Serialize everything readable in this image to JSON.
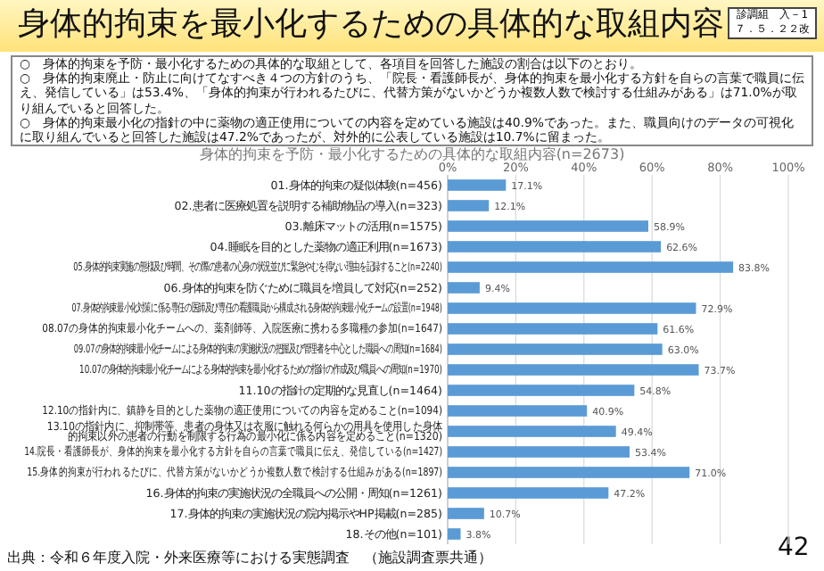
{
  "chart_data": {
    "type": "bar",
    "orientation": "horizontal",
    "title": "身体的拘束を最小化するための具体的な取組内容",
    "subtitle": "身体的拘束を予防・最小化するための具体的な取組内容(n=2673)",
    "annotations": [
      "診調組　入－1\n７．５．２２改",
      "○　身体的拘束を予防・最小化するための具体的な取組として、各項目を回答した施設の割合は以下のとおり。",
      "○　身体的拘束廃止・防止に向けてなすべき４つの方針のうち、「院長・看護師長が、身体的拘束を最小化する方針を自らの言葉で職員に伝え、発信している」は53.4%、「身体的拘束が行われるたびに、代替方策がないかどうか複数人数で検討する仕組みがある」は71.0%が取り組んでいると回答した。",
      "○　身体的拘束最小化の指針の中に薬物の適正使用についての内容を定めている施設は40.9%であった。また、職員向けのデータの可視化に取り組んでいると回答した施設は47.2%であったが、対外的に公表している施設は10.7%に留まった。",
      "出典：令和６年度入院・外来医療等における実態調査　（施設調査票共通）",
      "42"
    ],
    "categories": [
      "01.身体的拘束の疑似体験(n=456)",
      "02.患者に医療処置を説明する補助物品の導入(n=323)",
      "03.離床マットの活用(n=1575)",
      "04.睡眠を目的とした薬物の適正利用(n=1673)",
      "05.身体的拘束実施の態様及び時間、その際の患者の心身の状況並びに緊急やむを得ない理由を記録すること(n=2240)",
      "06.身体的拘束を防ぐために職員を増員して対応(n=252)",
      "07.身体的拘束最小化対策に係る専任の医師及び専任の看護職員から構成される身体的拘束最小化チームの設置(n=1948)",
      "08.07の身体的拘束最小化チームへの、薬剤師等、入院医療に携わる多職種の参加(n=1647)",
      "09.07の身体的拘束最小化チームによる身体的拘束の実施状況の把握及び管理者を中心とした職員への周知(n=1684)",
      "10.07の身体的拘束最小化チームによる身体的拘束を最小化するための指針の作成及び職員への周知(n=1970)",
      "11.10の指針の定期的な見直し(n=1464)",
      "12.10の指針内に、鎮静を目的とした薬物の適正使用についての内容を定めること(n=1094)",
      "13.10の指針内に、抑制帯等、患者の身体又は衣服に触れる何らかの用具を使用した身体的拘束以外の患者の行動を制限する行為の最小化に係る内容を定めること(n=1320)",
      "14.院長・看護師長が、身体的拘束を最小化する方針を自らの言葉で職員に伝え、発信している(n=1427)",
      "15.身体的拘束が行われるたびに、代替方策がないかどうか複数人数で検討する仕組みがある(n=1897)",
      "16.身体的拘束の実施状況の全職員への公開・周知(n=1261)",
      "17.身体的拘束の実施状況の院内掲示やHP掲載(n=285)",
      "18.その他(n=101)"
    ],
    "values": [
      17.1,
      12.1,
      58.9,
      62.6,
      83.8,
      9.4,
      72.9,
      61.6,
      63.0,
      73.7,
      54.8,
      40.9,
      49.4,
      53.4,
      71.0,
      47.2,
      10.7,
      3.8
    ],
    "value_labels": [
      "17.1%",
      "12.1%",
      "58.9%",
      "62.6%",
      "83.8%",
      "9.4%",
      "72.9%",
      "61.6%",
      "63.0%",
      "73.7%",
      "54.8%",
      "40.9%",
      "49.4%",
      "53.4%",
      "71.0%",
      "47.2%",
      "10.7%",
      "3.8%"
    ],
    "color": "#5b9bd5",
    "xlim": [
      0,
      100
    ],
    "xticks": [
      {
        "value": 0,
        "label": "0%"
      },
      {
        "value": 20,
        "label": "20%"
      },
      {
        "value": 40,
        "label": "40%"
      },
      {
        "value": 60,
        "label": "60%"
      },
      {
        "value": 80,
        "label": "80%"
      },
      {
        "value": 100,
        "label": "100%"
      }
    ],
    "grid": "x"
  }
}
